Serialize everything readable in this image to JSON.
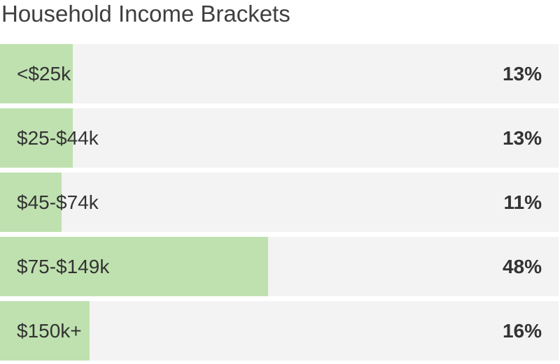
{
  "title": "Household Income Brackets",
  "colors": {
    "bar_fill": "#bfe1b0",
    "track": "#f3f3f3",
    "text": "#333333"
  },
  "chart_data": {
    "type": "bar",
    "orientation": "horizontal",
    "title": "Household Income Brackets",
    "categories": [
      "<$25k",
      "$25-$44k",
      "$45-$74k",
      "$75-$149k",
      "$150k+"
    ],
    "values": [
      13,
      13,
      11,
      48,
      16
    ],
    "value_labels": [
      "13%",
      "13%",
      "11%",
      "48%",
      "16%"
    ],
    "unit": "%",
    "xlim": [
      0,
      100
    ],
    "grid": false,
    "legend": "none"
  }
}
